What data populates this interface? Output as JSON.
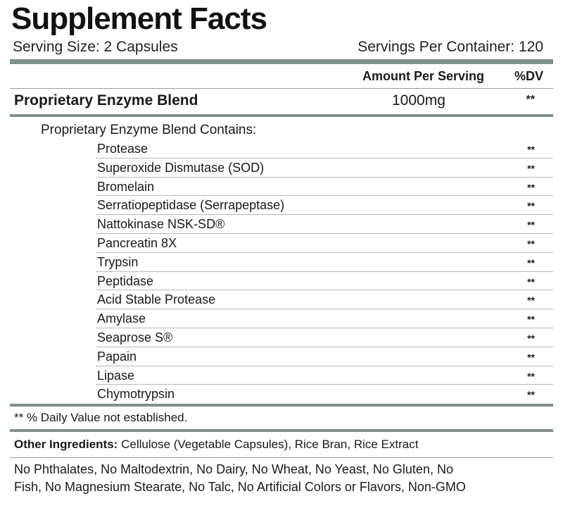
{
  "label": {
    "title": "Supplement Facts",
    "serving_size": "Serving Size: 2 Capsules",
    "servings_per_container": "Servings Per Container: 120",
    "header_amount": "Amount Per Serving",
    "header_dv": "%DV",
    "blend_name": "Proprietary Enzyme Blend",
    "blend_amount": "1000mg",
    "blend_dv": "**",
    "contains_label": "Proprietary Enzyme Blend Contains:",
    "ingredients": [
      {
        "name": "Protease",
        "dv": "**"
      },
      {
        "name": "Superoxide Dismutase (SOD)",
        "dv": "**"
      },
      {
        "name": "Bromelain",
        "dv": "**"
      },
      {
        "name": "Serratiopeptidase (Serrapeptase)",
        "dv": "**"
      },
      {
        "name": "Nattokinase NSK-SD®",
        "dv": "**"
      },
      {
        "name": "Pancreatin 8X",
        "dv": "**"
      },
      {
        "name": "Trypsin",
        "dv": "**"
      },
      {
        "name": "Peptidase",
        "dv": "**"
      },
      {
        "name": "Acid Stable Protease",
        "dv": "**"
      },
      {
        "name": "Amylase",
        "dv": "**"
      },
      {
        "name": "Seaprose S®",
        "dv": "**"
      },
      {
        "name": "Papain",
        "dv": "**"
      },
      {
        "name": "Lipase",
        "dv": "**"
      },
      {
        "name": "Chymotrypsin",
        "dv": "**"
      }
    ],
    "footnote": "** % Daily Value not established.",
    "other_ingredients_label": "Other Ingredients:",
    "other_ingredients_value": "Cellulose (Vegetable Capsules), Rice Bran, Rice Extract",
    "free_from_line1": "No Phthalates, No Maltodextrin, No Dairy, No Wheat, No Yeast, No Gluten, No",
    "free_from_line2": "Fish, No Magnesium Stearate, No Talc, No Artificial Colors or Flavors, Non-GMO"
  },
  "colors": {
    "rule": "#7f8f8d",
    "text": "#1a1a1a"
  }
}
